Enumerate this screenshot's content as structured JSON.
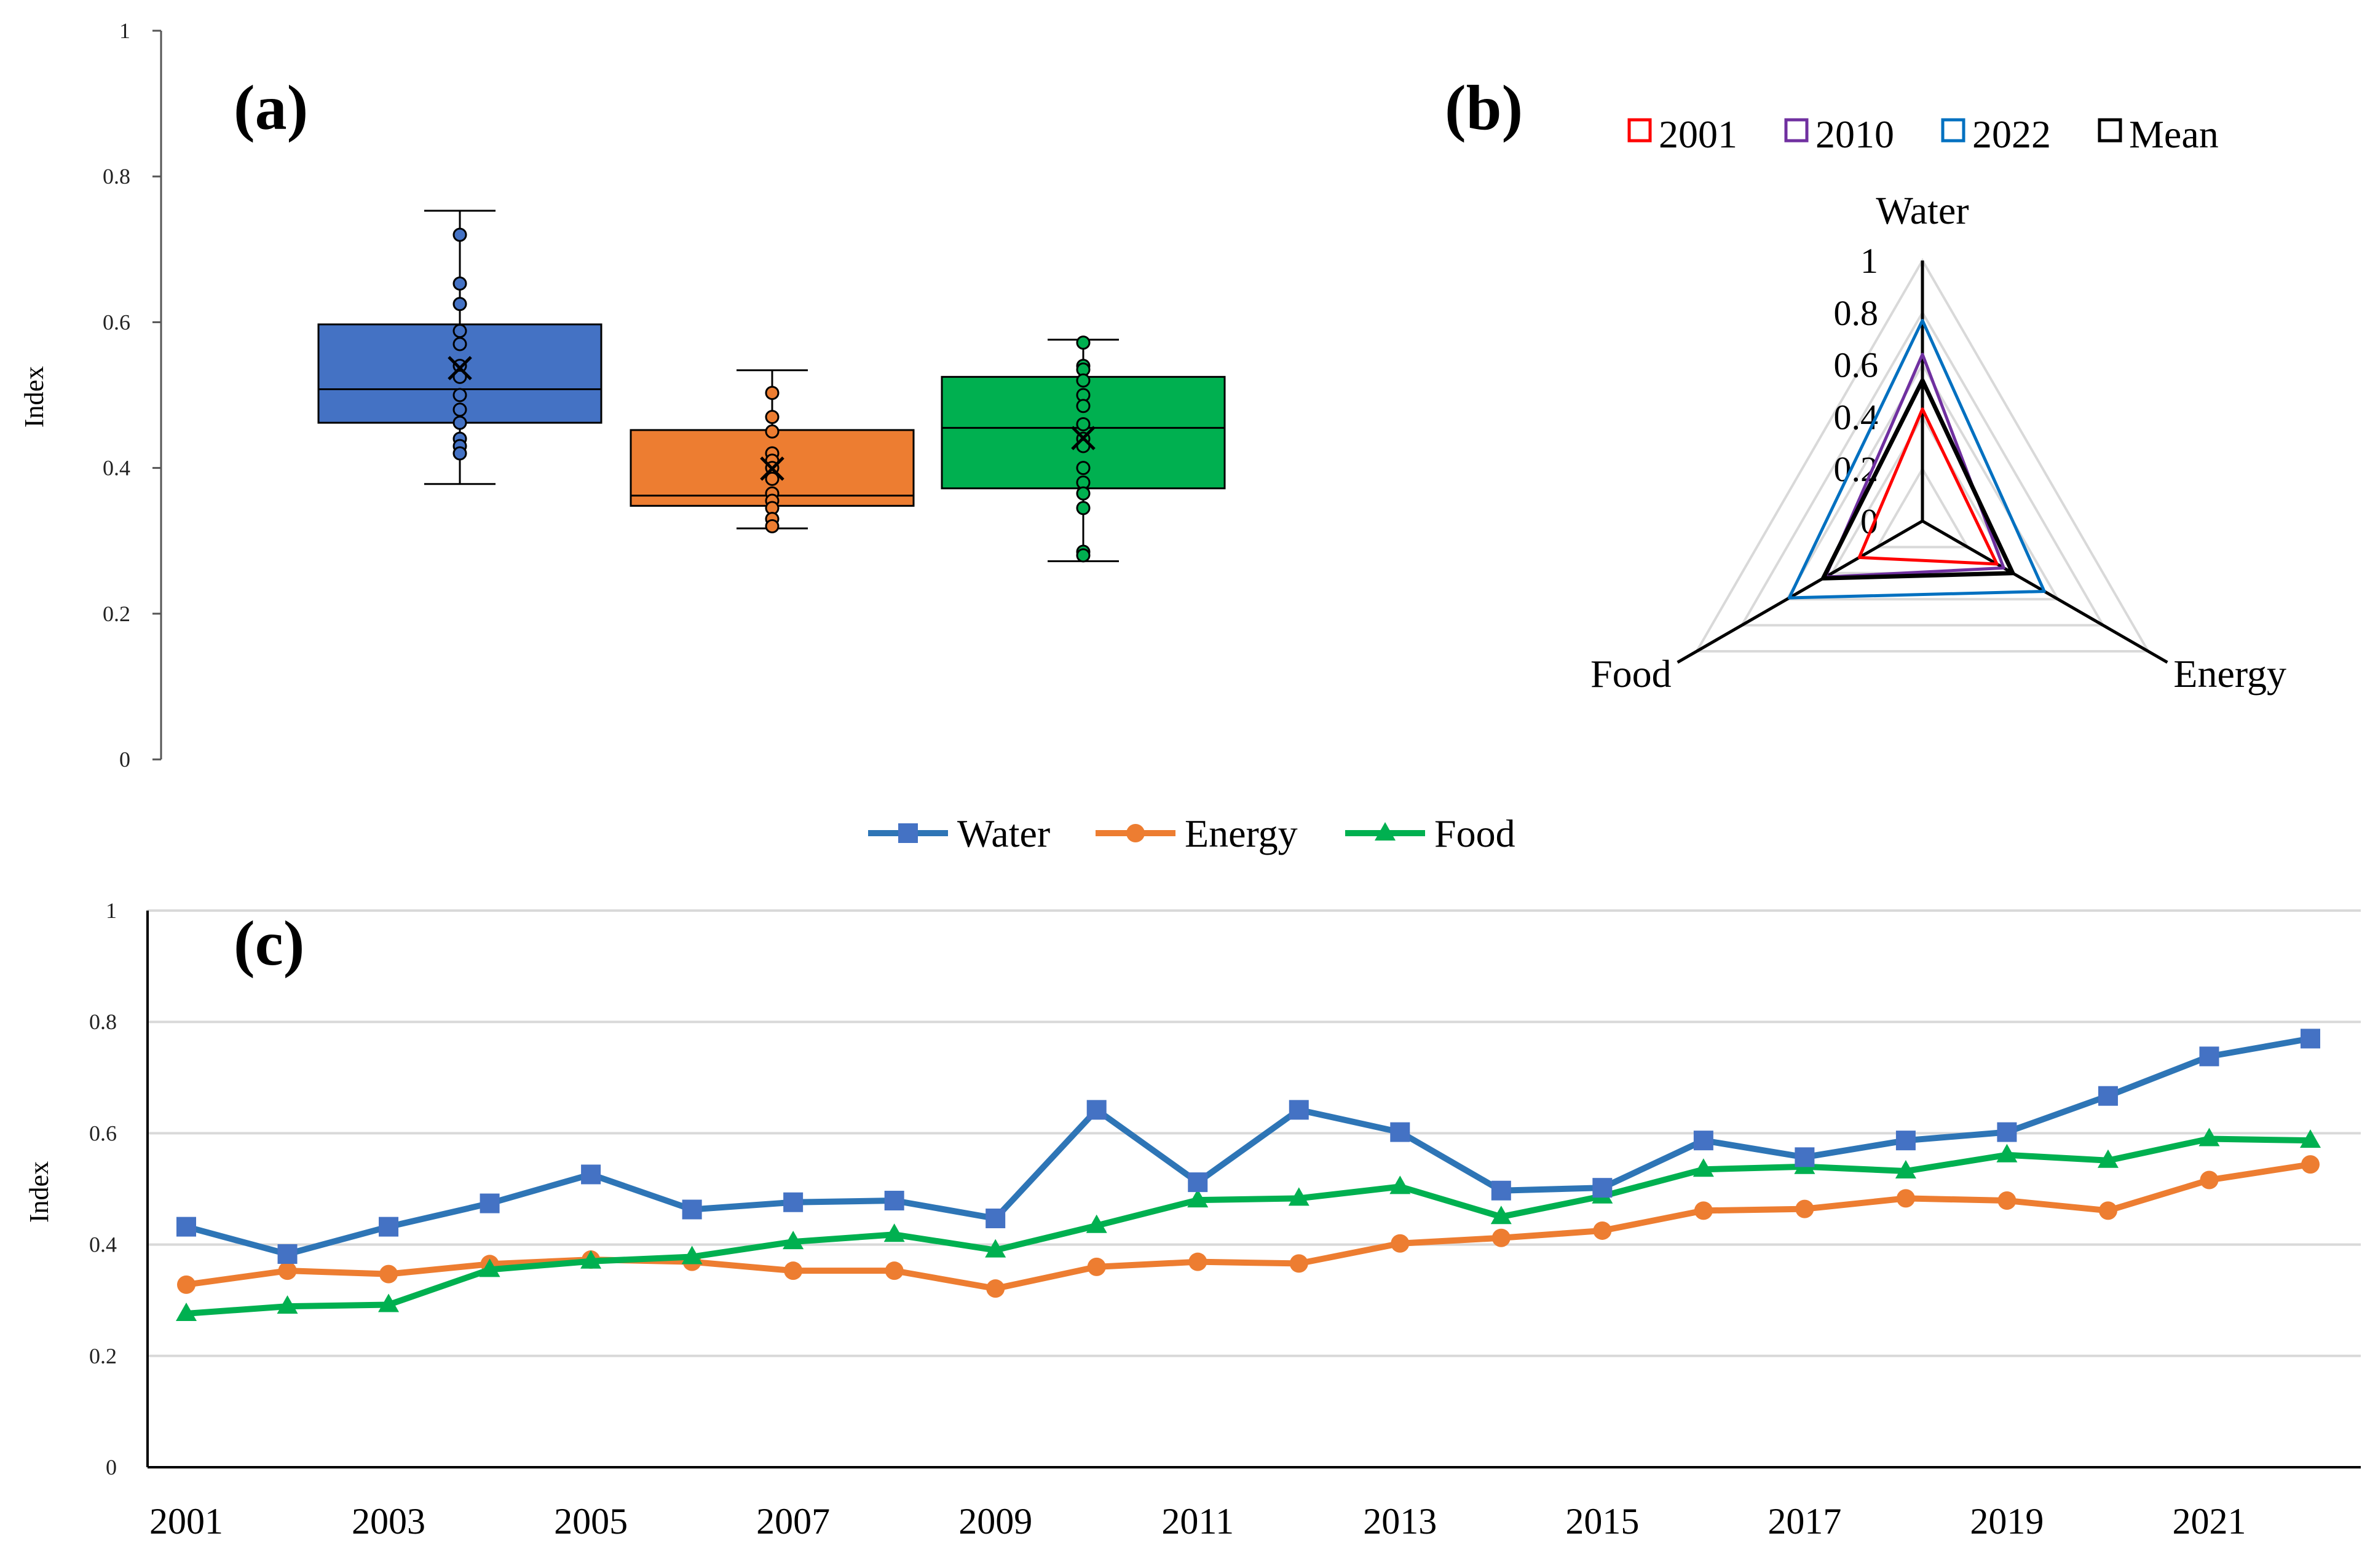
{
  "colors": {
    "water": "#4472C4",
    "energy": "#ED7D31",
    "food": "#00B050",
    "water_line": "#2E75B6",
    "radar_2001": "#FF0000",
    "radar_2010": "#7030A0",
    "radar_2022": "#0070C0",
    "radar_mean": "#000000",
    "grid": "#D9D9D9"
  },
  "chart_data": [
    {
      "id": "a",
      "panel_label": "(a)",
      "type": "box",
      "ylabel": "Index",
      "ylim": [
        0,
        1
      ],
      "y_ticks": [
        "0",
        "0.2",
        "0.4",
        "0.6",
        "0.8",
        "1"
      ],
      "series": [
        {
          "name": "Water",
          "min": 0.378,
          "q1": 0.462,
          "median": 0.508,
          "q3": 0.597,
          "max": 0.753,
          "mean": 0.537,
          "points": [
            0.72,
            0.653,
            0.625,
            0.588,
            0.57,
            0.54,
            0.525,
            0.5,
            0.48,
            0.462,
            0.44,
            0.43,
            0.42
          ]
        },
        {
          "name": "Energy",
          "min": 0.317,
          "q1": 0.348,
          "median": 0.362,
          "q3": 0.452,
          "max": 0.534,
          "mean": 0.399,
          "points": [
            0.503,
            0.47,
            0.45,
            0.42,
            0.41,
            0.4,
            0.385,
            0.365,
            0.355,
            0.345,
            0.33,
            0.32
          ]
        },
        {
          "name": "Food",
          "min": 0.272,
          "q1": 0.372,
          "median": 0.455,
          "q3": 0.525,
          "max": 0.576,
          "mean": 0.441,
          "points": [
            0.572,
            0.54,
            0.535,
            0.52,
            0.5,
            0.485,
            0.46,
            0.44,
            0.43,
            0.4,
            0.38,
            0.365,
            0.345,
            0.285,
            0.28
          ]
        }
      ]
    },
    {
      "id": "b",
      "panel_label": "(b)",
      "type": "radar",
      "axes": [
        "Water",
        "Energy",
        "Food"
      ],
      "r_ticks": [
        "0",
        "0.2",
        "0.4",
        "0.6",
        "0.8",
        "1"
      ],
      "rlim": [
        0,
        1
      ],
      "series": [
        {
          "name": "2001",
          "values": [
            0.43,
            0.33,
            0.28
          ]
        },
        {
          "name": "2010",
          "values": [
            0.64,
            0.36,
            0.43
          ]
        },
        {
          "name": "2022",
          "values": [
            0.77,
            0.54,
            0.59
          ]
        },
        {
          "name": "Mean",
          "values": [
            0.54,
            0.4,
            0.44
          ]
        }
      ]
    },
    {
      "id": "c",
      "panel_label": "(c)",
      "type": "line",
      "ylabel": "Index",
      "ylim": [
        0,
        1
      ],
      "y_ticks": [
        "0",
        "0.2",
        "0.4",
        "0.6",
        "0.8",
        "1"
      ],
      "x": [
        2001,
        2002,
        2003,
        2004,
        2005,
        2006,
        2007,
        2008,
        2009,
        2010,
        2011,
        2012,
        2013,
        2014,
        2015,
        2016,
        2017,
        2018,
        2019,
        2020,
        2021,
        2022
      ],
      "x_tick_labels": [
        "2001",
        "2003",
        "2005",
        "2007",
        "2009",
        "2011",
        "2013",
        "2015",
        "2017",
        "2019",
        "2021"
      ],
      "series": [
        {
          "name": "Water",
          "values": [
            0.432,
            0.383,
            0.432,
            0.474,
            0.526,
            0.463,
            0.476,
            0.479,
            0.447,
            0.642,
            0.512,
            0.642,
            0.602,
            0.497,
            0.502,
            0.587,
            0.557,
            0.587,
            0.602,
            0.667,
            0.738,
            0.77
          ]
        },
        {
          "name": "Energy",
          "values": [
            0.328,
            0.353,
            0.347,
            0.365,
            0.373,
            0.369,
            0.353,
            0.353,
            0.321,
            0.36,
            0.369,
            0.366,
            0.402,
            0.412,
            0.425,
            0.461,
            0.464,
            0.483,
            0.479,
            0.461,
            0.516,
            0.544
          ]
        },
        {
          "name": "Food",
          "values": [
            0.276,
            0.289,
            0.292,
            0.355,
            0.37,
            0.378,
            0.405,
            0.418,
            0.39,
            0.434,
            0.48,
            0.483,
            0.504,
            0.45,
            0.487,
            0.535,
            0.54,
            0.532,
            0.561,
            0.551,
            0.59,
            0.587
          ]
        }
      ]
    }
  ]
}
